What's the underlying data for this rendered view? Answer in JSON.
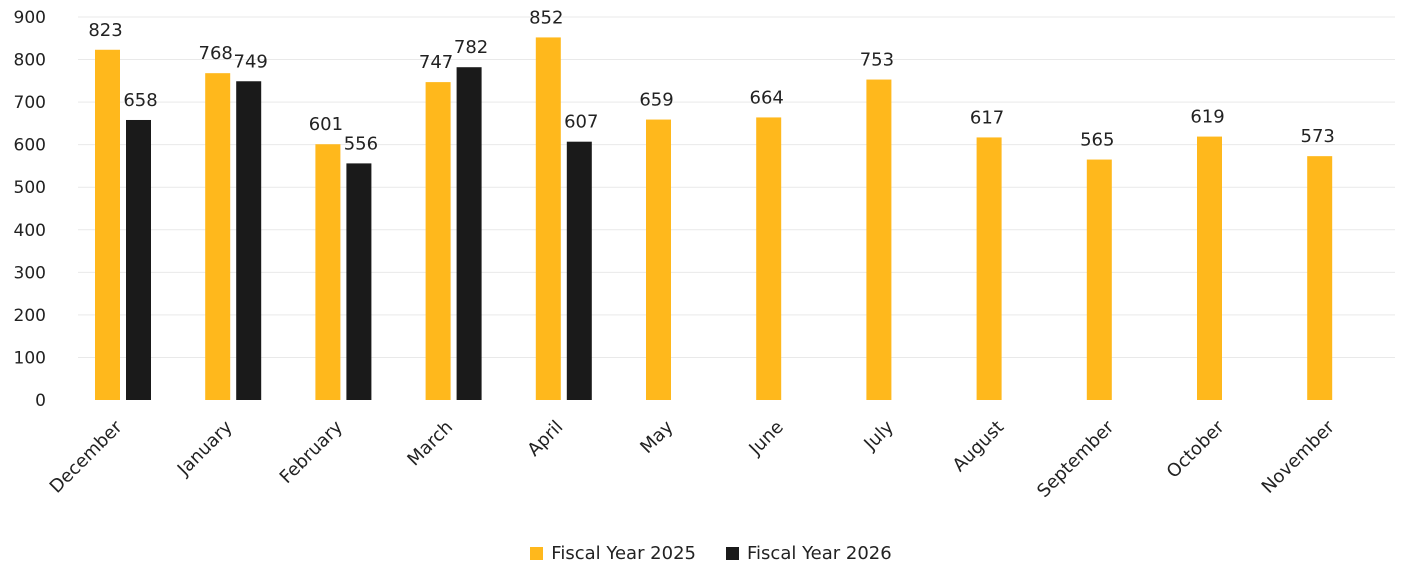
{
  "chart_data": {
    "type": "bar",
    "categories": [
      "December",
      "January",
      "February",
      "March",
      "April",
      "May",
      "June",
      "July",
      "August",
      "September",
      "October",
      "November"
    ],
    "series": [
      {
        "name": "Fiscal Year 2025",
        "color": "#FFB81C",
        "values": [
          823,
          768,
          601,
          747,
          852,
          659,
          664,
          753,
          617,
          565,
          619,
          573
        ],
        "labels": [
          "823",
          "768",
          "601",
          "747",
          "852",
          "659",
          "664",
          "753",
          "617",
          "565",
          "619",
          "573"
        ]
      },
      {
        "name": "Fiscal Year 2026",
        "color": "#1A1A1A",
        "values": [
          658,
          749,
          556,
          782,
          607,
          null,
          null,
          null,
          null,
          null,
          null,
          null
        ],
        "labels": [
          "658",
          "749",
          "556",
          "782",
          "607",
          null,
          null,
          null,
          null,
          null,
          null,
          null
        ]
      }
    ],
    "yticks": [
      "0",
      "100",
      "200",
      "300",
      "400",
      "500",
      "600",
      "700",
      "800",
      "900"
    ],
    "ylim": [
      0,
      900
    ],
    "grid": true,
    "legend_position": "bottom-center",
    "title": "",
    "xlabel": "",
    "ylabel": ""
  }
}
